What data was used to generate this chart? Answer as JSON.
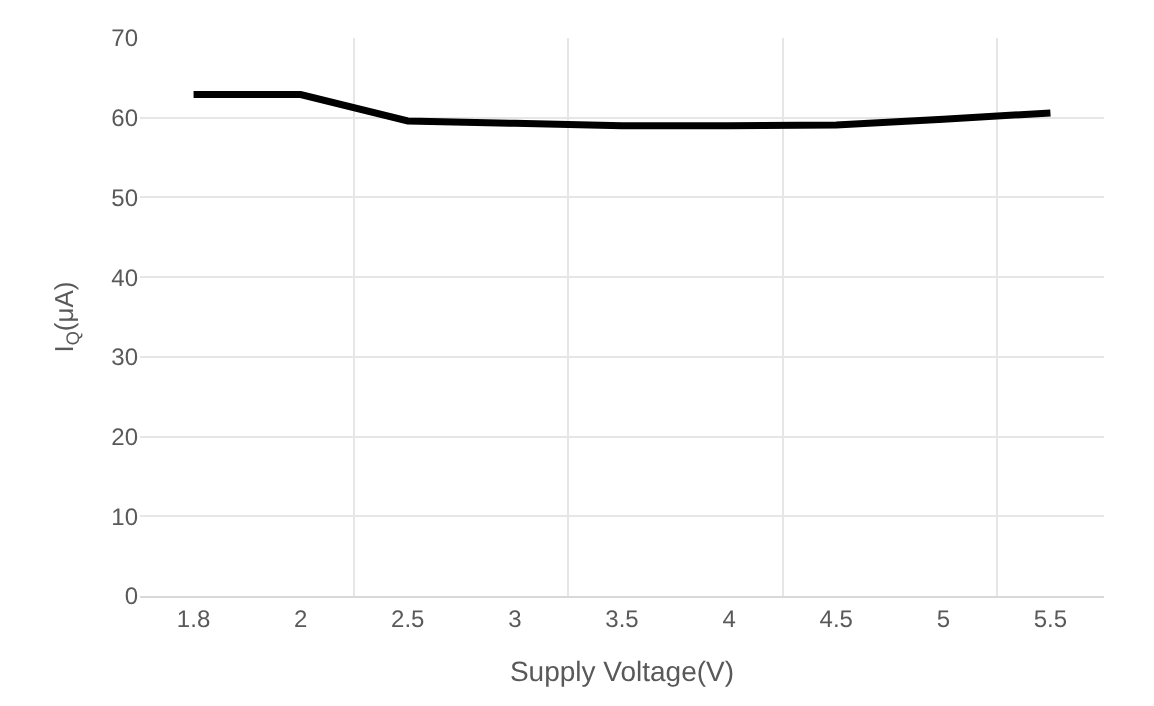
{
  "chart_data": {
    "type": "line",
    "xlabel": "Supply Voltage(V)",
    "ylabel": "I$_{Q}$(μA)",
    "categories": [
      "1.8",
      "2",
      "2.5",
      "3",
      "3.5",
      "4",
      "4.5",
      "5",
      "5.5"
    ],
    "series": [
      {
        "color": "#000000",
        "values": [
          62.9,
          62.9,
          59.6,
          59.3,
          59.0,
          59.0,
          59.1,
          59.8,
          60.6
        ]
      }
    ],
    "ylim": [
      0,
      70
    ],
    "yticks": [
      0,
      10,
      20,
      30,
      40,
      50,
      60,
      70
    ],
    "grid": true,
    "legend": false,
    "marker": "none",
    "line_style": "solid"
  }
}
